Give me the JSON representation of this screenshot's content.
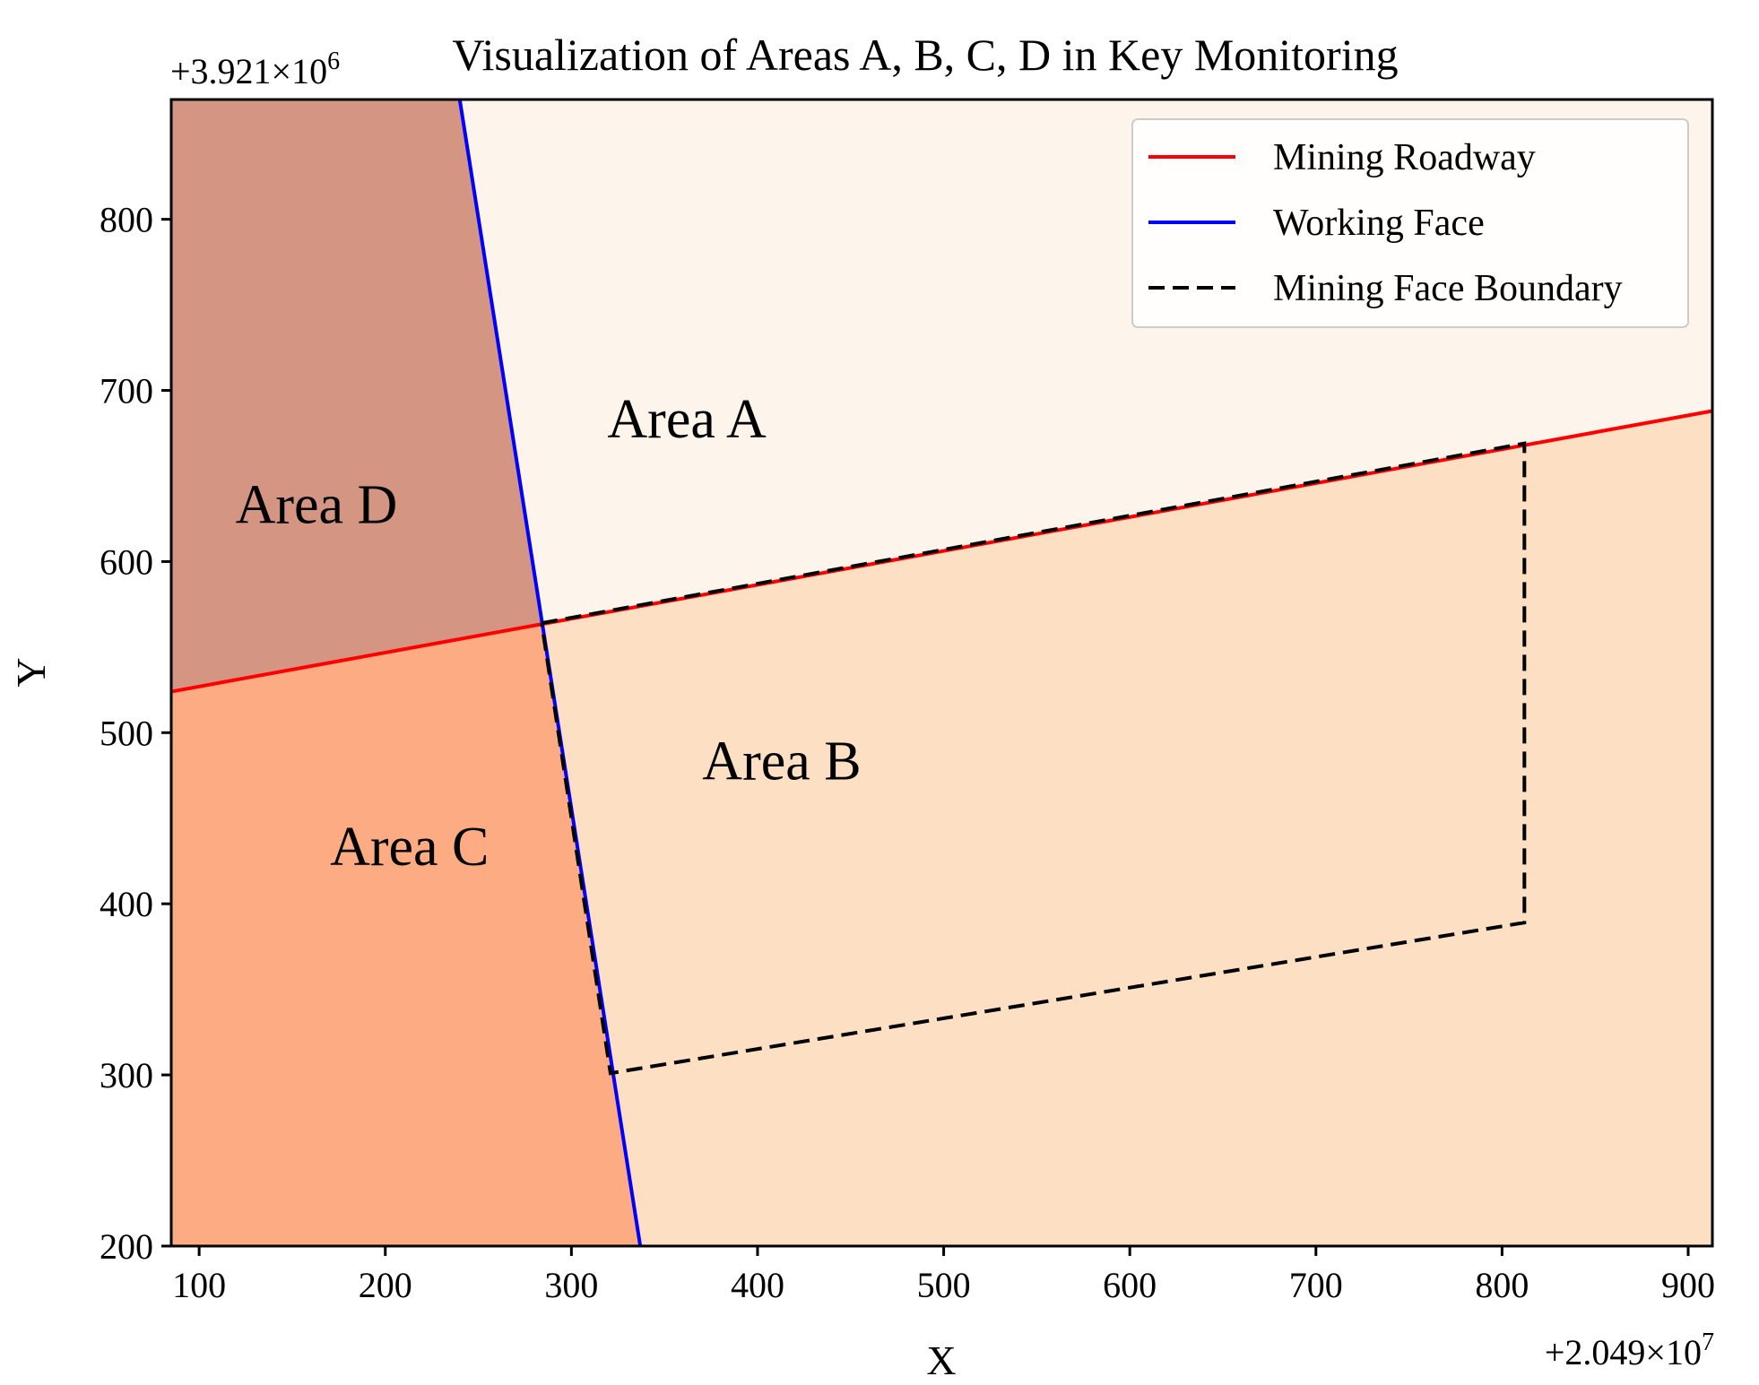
{
  "chart_data": {
    "type": "area",
    "title": "Visualization of Areas A, B, C, D in Key Monitoring",
    "xlabel": "X",
    "ylabel": "Y",
    "x_offset_label": "+2.049×10",
    "x_offset_exp": "7",
    "y_offset_label": "+3.921×10",
    "y_offset_exp": "6",
    "xlim": [
      85,
      913
    ],
    "ylim": [
      200,
      870
    ],
    "xticks": [
      100,
      200,
      300,
      400,
      500,
      600,
      700,
      800,
      900
    ],
    "yticks": [
      200,
      300,
      400,
      500,
      600,
      700,
      800
    ],
    "legend_position": "upper right",
    "series": [
      {
        "name": "Mining Roadway",
        "color": "#ff0000",
        "style": "solid",
        "points": [
          [
            85,
            524
          ],
          [
            913,
            688
          ]
        ]
      },
      {
        "name": "Working Face",
        "color": "#0000ff",
        "style": "solid",
        "points": [
          [
            240,
            870
          ],
          [
            337,
            200
          ]
        ]
      },
      {
        "name": "Mining Face Boundary",
        "color": "#000000",
        "style": "dashed",
        "points": [
          [
            284,
            564
          ],
          [
            812,
            669
          ],
          [
            812,
            389
          ],
          [
            321,
            301
          ],
          [
            284,
            564
          ]
        ]
      }
    ],
    "areas": [
      {
        "label": "Area A",
        "color": "#fdf4eb",
        "label_at": [
          362,
          680
        ],
        "polygon": [
          [
            240,
            870
          ],
          [
            913,
            870
          ],
          [
            913,
            688
          ],
          [
            284,
            564
          ]
        ]
      },
      {
        "label": "Area B",
        "color": "#fddfc3",
        "label_at": [
          413,
          480
        ],
        "polygon": [
          [
            284,
            564
          ],
          [
            913,
            688
          ],
          [
            913,
            200
          ],
          [
            337,
            200
          ]
        ]
      },
      {
        "label": "Area C",
        "color": "#fcab82",
        "label_at": [
          213,
          430
        ],
        "polygon": [
          [
            85,
            200
          ],
          [
            337,
            200
          ],
          [
            284,
            564
          ],
          [
            85,
            524
          ]
        ]
      },
      {
        "label": "Area D",
        "color": "#d49583",
        "label_at": [
          163,
          630
        ],
        "polygon": [
          [
            85,
            870
          ],
          [
            240,
            870
          ],
          [
            284,
            564
          ],
          [
            85,
            524
          ]
        ]
      }
    ]
  }
}
